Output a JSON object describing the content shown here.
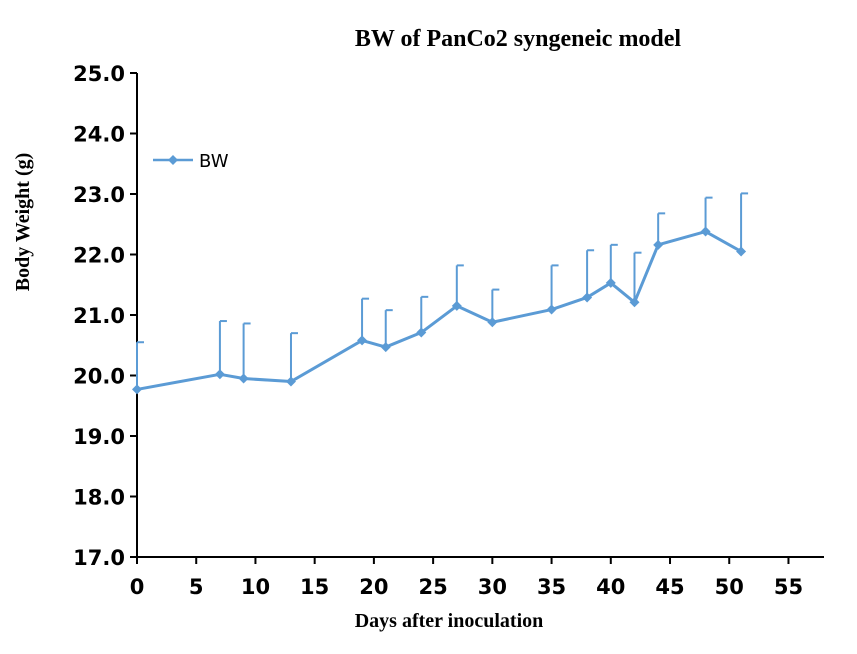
{
  "chart_data": {
    "type": "line",
    "title": "BW of PanCo2 syngeneic model",
    "xlabel": "Days after inoculation",
    "ylabel": "Body Weight (g)",
    "xlim": [
      0,
      58
    ],
    "ylim": [
      17.0,
      25.0
    ],
    "x_ticks": [
      0,
      5,
      10,
      15,
      20,
      25,
      30,
      35,
      40,
      45,
      50,
      55
    ],
    "x_tick_labels": [
      "0",
      "5",
      "10",
      "15",
      "20",
      "25",
      "30",
      "35",
      "40",
      "45",
      "50",
      "55"
    ],
    "y_ticks": [
      17.0,
      18.0,
      19.0,
      20.0,
      21.0,
      22.0,
      23.0,
      24.0,
      25.0
    ],
    "y_tick_labels": [
      "17.0",
      "18.0",
      "19.0",
      "20.0",
      "21.0",
      "22.0",
      "23.0",
      "24.0",
      "25.0"
    ],
    "grid": false,
    "legend_position": "top-left",
    "series": [
      {
        "name": "BW",
        "color": "#5B9BD5",
        "marker": "diamond",
        "x": [
          0,
          7,
          9,
          13,
          19,
          21,
          24,
          27,
          30,
          35,
          38,
          40,
          42,
          44,
          48,
          51
        ],
        "y": [
          19.77,
          20.02,
          19.95,
          19.9,
          20.58,
          20.47,
          20.71,
          21.15,
          20.88,
          21.09,
          21.29,
          21.53,
          21.21,
          22.16,
          22.38,
          22.05
        ],
        "error_upper": [
          0.78,
          0.88,
          0.91,
          0.8,
          0.69,
          0.61,
          0.59,
          0.67,
          0.54,
          0.73,
          0.78,
          0.63,
          0.82,
          0.52,
          0.56,
          0.96
        ]
      }
    ]
  }
}
